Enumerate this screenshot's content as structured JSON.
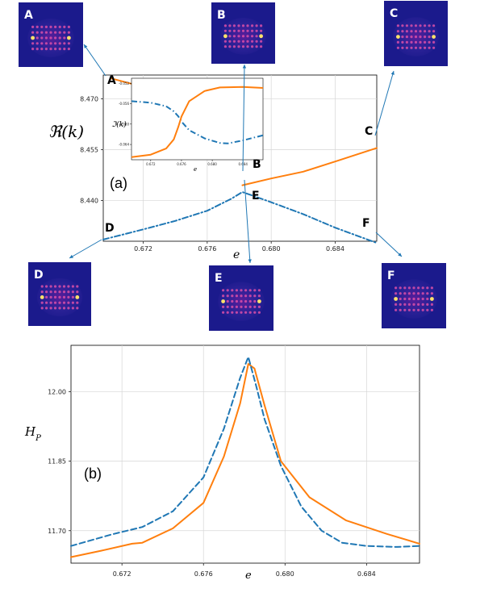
{
  "colors": {
    "blue": "#1f77b4",
    "orange": "#ff7f0e",
    "grid": "#d6d6d6",
    "thumb_bg": "#1b1a8c"
  },
  "chart_data": [
    {
      "type": "line",
      "panel_label": "(a)",
      "xlabel": "e",
      "ylabel": "ℜ(k)",
      "xlim": [
        0.6695,
        0.6866
      ],
      "ylim": [
        8.428,
        8.477
      ],
      "xticks": [
        "0.672",
        "0.676",
        "0.680",
        "0.684"
      ],
      "yticks": [
        "8.470",
        "8.455",
        "8.440"
      ],
      "grid": true,
      "series": [
        {
          "style": "solid",
          "color": "orange",
          "x": [
            0.67,
            0.672,
            0.674,
            0.676,
            0.6775,
            0.6782
          ],
          "y": [
            8.476,
            8.4735,
            8.4705,
            8.4675,
            8.4555,
            8.4525
          ]
        },
        {
          "style": "solid",
          "color": "orange",
          "x": [
            0.6782,
            0.68,
            0.682,
            0.684,
            0.6866
          ],
          "y": [
            8.4445,
            8.4465,
            8.4485,
            8.4515,
            8.4555
          ]
        },
        {
          "style": "dashdot",
          "color": "blue",
          "x": [
            0.6695,
            0.672,
            0.674,
            0.676,
            0.6775,
            0.6782,
            0.68,
            0.682,
            0.684,
            0.6866
          ],
          "y": [
            8.4285,
            8.4315,
            8.434,
            8.437,
            8.4405,
            8.4425,
            8.4395,
            8.436,
            8.432,
            8.4275
          ]
        }
      ],
      "annotations": [
        "A",
        "B",
        "C",
        "D",
        "E",
        "F"
      ],
      "inset": {
        "xlabel": "e",
        "ylabel": "ℑ(k)",
        "xticks": [
          "0.672",
          "0.676",
          "0.680",
          "0.684"
        ],
        "yticks": [
          "-0.052",
          "-0.056",
          "-0.060",
          "-0.064"
        ],
        "series": [
          {
            "style": "dashdot",
            "color": "blue",
            "x": [
              0.6695,
              0.672,
              0.674,
              0.675,
              0.6756,
              0.676,
              0.677,
              0.679,
              0.681,
              0.682,
              0.684,
              0.6866
            ],
            "y": [
              -0.0555,
              -0.0558,
              -0.0565,
              -0.0575,
              -0.0585,
              -0.0595,
              -0.0612,
              -0.0628,
              -0.0637,
              -0.0638,
              -0.0632,
              -0.0622
            ]
          },
          {
            "style": "solid",
            "color": "orange",
            "x": [
              0.6695,
              0.672,
              0.674,
              0.675,
              0.6756,
              0.676,
              0.677,
              0.679,
              0.681,
              0.684,
              0.6866
            ],
            "y": [
              -0.0665,
              -0.066,
              -0.0648,
              -0.063,
              -0.0605,
              -0.0585,
              -0.0555,
              -0.0535,
              -0.0528,
              -0.0527,
              -0.0529
            ]
          }
        ]
      }
    },
    {
      "type": "line",
      "panel_label": "(b)",
      "xlabel": "e",
      "ylabel": "H_P",
      "xlim": [
        0.6695,
        0.6866
      ],
      "ylim": [
        11.63,
        12.1
      ],
      "xticks": [
        "0.672",
        "0.676",
        "0.680",
        "0.684"
      ],
      "yticks": [
        "12.00",
        "11.85",
        "11.70"
      ],
      "grid": true,
      "series": [
        {
          "style": "solid",
          "color": "orange",
          "x": [
            0.6695,
            0.671,
            0.6725,
            0.673,
            0.6745,
            0.676,
            0.677,
            0.6778,
            0.6782,
            0.6785,
            0.679,
            0.6798,
            0.6812,
            0.683,
            0.685,
            0.6866
          ],
          "y": [
            11.643,
            11.657,
            11.672,
            11.674,
            11.705,
            11.76,
            11.86,
            11.975,
            12.06,
            12.05,
            11.97,
            11.85,
            11.772,
            11.722,
            11.693,
            11.672
          ]
        },
        {
          "style": "dashed",
          "color": "blue",
          "x": [
            0.6695,
            0.6715,
            0.673,
            0.6745,
            0.676,
            0.677,
            0.6778,
            0.6782,
            0.6786,
            0.679,
            0.6798,
            0.6808,
            0.6818,
            0.6828,
            0.684,
            0.6855,
            0.6866
          ],
          "y": [
            11.667,
            11.692,
            11.708,
            11.742,
            11.815,
            11.92,
            12.03,
            12.075,
            12.01,
            11.94,
            11.84,
            11.752,
            11.7,
            11.674,
            11.667,
            11.665,
            11.667
          ]
        }
      ]
    }
  ]
}
